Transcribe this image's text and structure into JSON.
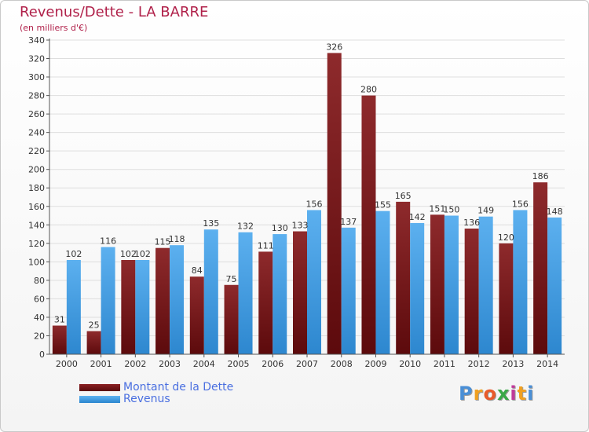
{
  "header": {
    "title": "Revenus/Dette - LA BARRE",
    "subtitle": "(en milliers d'€)"
  },
  "chart_data": {
    "type": "bar",
    "title": "Revenus/Dette - LA BARRE",
    "ylabel": "(en milliers d'€)",
    "xlabel": "",
    "ylim": [
      0,
      340
    ],
    "ytick_step": 20,
    "grid": true,
    "categories": [
      "2000",
      "2001",
      "2002",
      "2003",
      "2004",
      "2005",
      "2006",
      "2007",
      "2008",
      "2009",
      "2010",
      "2011",
      "2012",
      "2013",
      "2014"
    ],
    "series": [
      {
        "name": "Montant de la Dette",
        "color": "#7a1518",
        "values": [
          31,
          25,
          102,
          115,
          84,
          75,
          111,
          133,
          326,
          280,
          165,
          151,
          136,
          120,
          186
        ]
      },
      {
        "name": "Revenus",
        "color": "#3f9de4",
        "values": [
          102,
          116,
          102,
          118,
          135,
          132,
          130,
          156,
          137,
          155,
          142,
          150,
          149,
          156,
          148
        ]
      }
    ]
  },
  "legend": {
    "debt_label": "Montant de la Dette",
    "revenue_label": "Revenus",
    "position": "bottom-left"
  },
  "logo": {
    "letters": [
      "P",
      "r",
      "o",
      "x",
      "i",
      "t",
      "i"
    ],
    "colors": [
      "#4a8fd6",
      "#f0a020",
      "#e85a2a",
      "#3aa848",
      "#c03a9a",
      "#f0a020",
      "#4a8fd6"
    ]
  }
}
